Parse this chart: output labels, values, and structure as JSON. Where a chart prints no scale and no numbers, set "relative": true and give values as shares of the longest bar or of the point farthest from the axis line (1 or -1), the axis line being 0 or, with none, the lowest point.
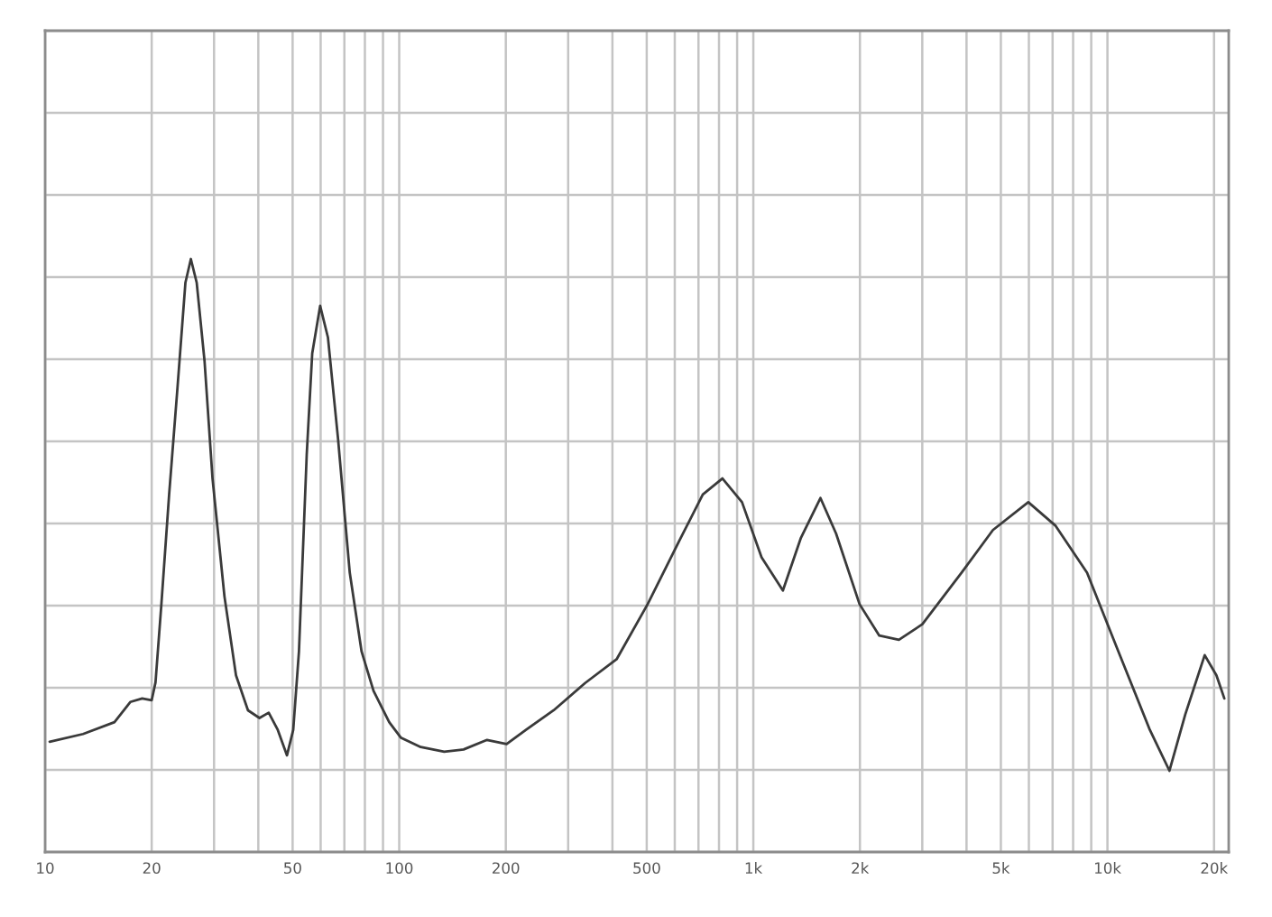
{
  "chart_data": {
    "type": "line",
    "relative": true,
    "log": "x",
    "grid": true,
    "tick_labels": "x",
    "xlim": [
      10,
      22000
    ],
    "xticks": [
      {
        "value": 10,
        "label": "10"
      },
      {
        "value": 20,
        "label": "20"
      },
      {
        "value": 30,
        "label": null
      },
      {
        "value": 40,
        "label": null
      },
      {
        "value": 50,
        "label": "50"
      },
      {
        "value": 60,
        "label": null
      },
      {
        "value": 70,
        "label": null
      },
      {
        "value": 80,
        "label": null
      },
      {
        "value": 90,
        "label": null
      },
      {
        "value": 100,
        "label": "100"
      },
      {
        "value": 200,
        "label": "200"
      },
      {
        "value": 300,
        "label": null
      },
      {
        "value": 400,
        "label": null
      },
      {
        "value": 500,
        "label": "500"
      },
      {
        "value": 600,
        "label": null
      },
      {
        "value": 700,
        "label": null
      },
      {
        "value": 800,
        "label": null
      },
      {
        "value": 900,
        "label": null
      },
      {
        "value": 1000,
        "label": "1k"
      },
      {
        "value": 2000,
        "label": "2k"
      },
      {
        "value": 3000,
        "label": null
      },
      {
        "value": 4000,
        "label": null
      },
      {
        "value": 5000,
        "label": "5k"
      },
      {
        "value": 6000,
        "label": null
      },
      {
        "value": 7000,
        "label": null
      },
      {
        "value": 8000,
        "label": null
      },
      {
        "value": 9000,
        "label": null
      },
      {
        "value": 10000,
        "label": "10k"
      },
      {
        "value": 20000,
        "label": "20k"
      }
    ],
    "series": [
      {
        "color": "#3a3a3a",
        "x": [
          10.3,
          12.8,
          15.7,
          17.4,
          18.8,
          20,
          20.5,
          21.3,
          22.4,
          23.6,
          24.9,
          25.8,
          26.8,
          28.2,
          29.7,
          32.1,
          34.6,
          37.4,
          40.3,
          42.8,
          45.4,
          48.2,
          50.2,
          52.1,
          54.8,
          56.8,
          59.8,
          62.9,
          67.2,
          72.5,
          78.3,
          84.6,
          93.7,
          101,
          115,
          134,
          152,
          177,
          201,
          228,
          273,
          335,
          411,
          503,
          617,
          720,
          818,
          929,
          1055,
          1212,
          1363,
          1547,
          1713,
          1995,
          2268,
          2577,
          3001,
          3871,
          4749,
          5977,
          7142,
          8758,
          10742,
          13175,
          14968,
          16586,
          18821,
          20315,
          21385
        ],
        "values": [
          0.186,
          0.199,
          0.219,
          0.253,
          0.259,
          0.256,
          0.286,
          0.418,
          0.603,
          0.776,
          0.96,
          1,
          0.96,
          0.828,
          0.63,
          0.431,
          0.298,
          0.239,
          0.226,
          0.235,
          0.206,
          0.163,
          0.206,
          0.338,
          0.67,
          0.841,
          0.921,
          0.868,
          0.696,
          0.471,
          0.338,
          0.272,
          0.219,
          0.193,
          0.177,
          0.169,
          0.173,
          0.189,
          0.182,
          0.206,
          0.239,
          0.285,
          0.325,
          0.418,
          0.524,
          0.603,
          0.63,
          0.59,
          0.497,
          0.441,
          0.53,
          0.597,
          0.537,
          0.418,
          0.365,
          0.358,
          0.384,
          0.471,
          0.543,
          0.59,
          0.55,
          0.471,
          0.338,
          0.206,
          0.137,
          0.232,
          0.332,
          0.298,
          0.259
        ]
      }
    ]
  }
}
